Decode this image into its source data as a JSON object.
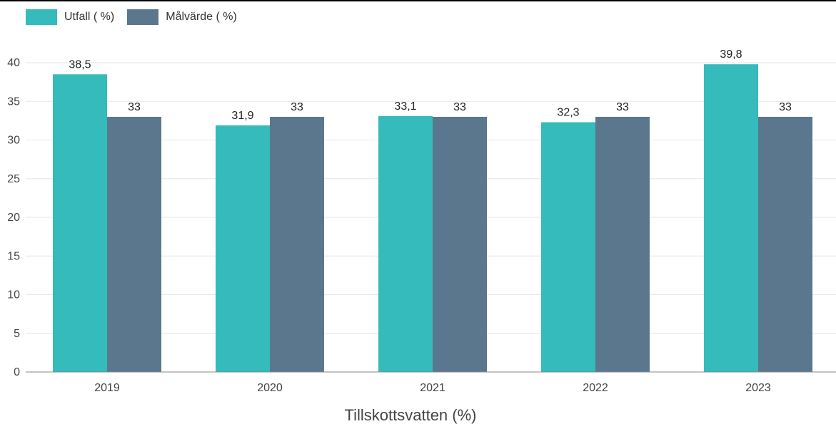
{
  "chart_data": {
    "type": "bar",
    "categories": [
      "2019",
      "2020",
      "2021",
      "2022",
      "2023"
    ],
    "series": [
      {
        "name": "Utfall ( %)",
        "values": [
          38.5,
          31.9,
          33.1,
          32.3,
          39.8
        ],
        "labels": [
          "38,5",
          "31,9",
          "33,1",
          "32,3",
          "39,8"
        ],
        "color": "#35BBBB"
      },
      {
        "name": "Målvärde ( %)",
        "values": [
          33,
          33,
          33,
          33,
          33
        ],
        "labels": [
          "33",
          "33",
          "33",
          "33",
          "33"
        ],
        "color": "#5A778E"
      }
    ],
    "xlabel": "Tillskottsvatten (%)",
    "ylabel": "",
    "ylim": [
      0,
      40
    ],
    "yticks": [
      0,
      5,
      10,
      15,
      20,
      25,
      30,
      35,
      40
    ],
    "grid": true,
    "legend_position": "top-left"
  }
}
